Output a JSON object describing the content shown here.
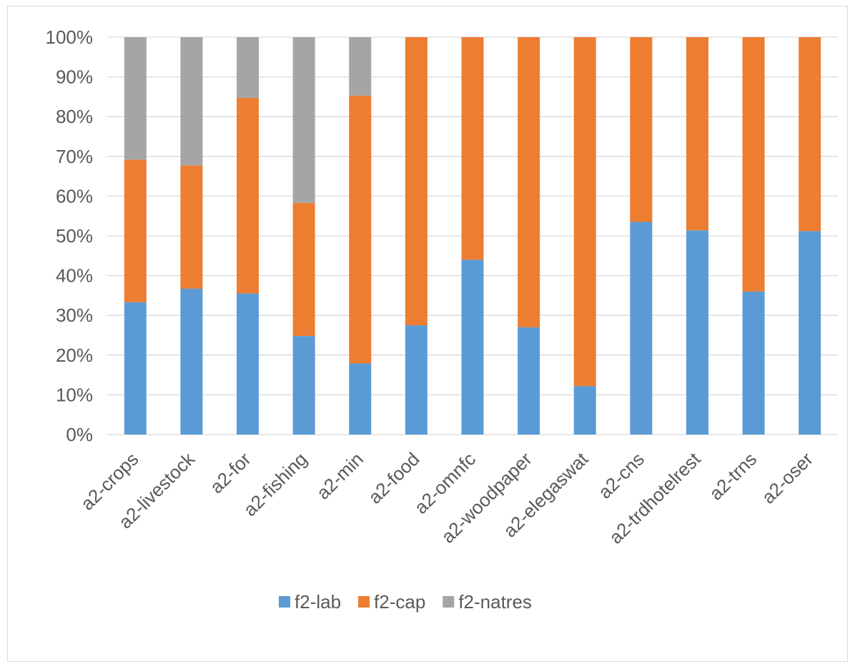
{
  "chart_data": {
    "type": "bar",
    "stacked": true,
    "percent": true,
    "title": "",
    "xlabel": "",
    "ylabel": "",
    "ylim": [
      0,
      100
    ],
    "yticks": [
      "0%",
      "10%",
      "20%",
      "30%",
      "40%",
      "50%",
      "60%",
      "70%",
      "80%",
      "90%",
      "100%"
    ],
    "grid": true,
    "legend_position": "bottom",
    "categories": [
      "a2-crops",
      "a2-livestock",
      "a2-for",
      "a2-fishing",
      "a2-min",
      "a2-food",
      "a2-omnfc",
      "a2-woodpaper",
      "a2-elegaswat",
      "a2-cns",
      "a2-trdhotelrest",
      "a2-trns",
      "a2-oser"
    ],
    "series": [
      {
        "name": "f2-lab",
        "color": "#5b9bd5",
        "values": [
          33.3,
          36.7,
          35.5,
          24.8,
          17.9,
          27.5,
          44.0,
          27.0,
          12.2,
          53.5,
          51.4,
          36.0,
          51.2
        ]
      },
      {
        "name": "f2-cap",
        "color": "#ed7d31",
        "values": [
          35.9,
          31.0,
          49.2,
          33.5,
          67.4,
          72.5,
          56.0,
          73.0,
          87.8,
          46.5,
          48.6,
          64.0,
          48.8
        ]
      },
      {
        "name": "f2-natres",
        "color": "#a5a5a5",
        "values": [
          30.8,
          32.3,
          15.3,
          41.7,
          14.7,
          0,
          0,
          0,
          0,
          0,
          0,
          0,
          0
        ]
      }
    ]
  }
}
